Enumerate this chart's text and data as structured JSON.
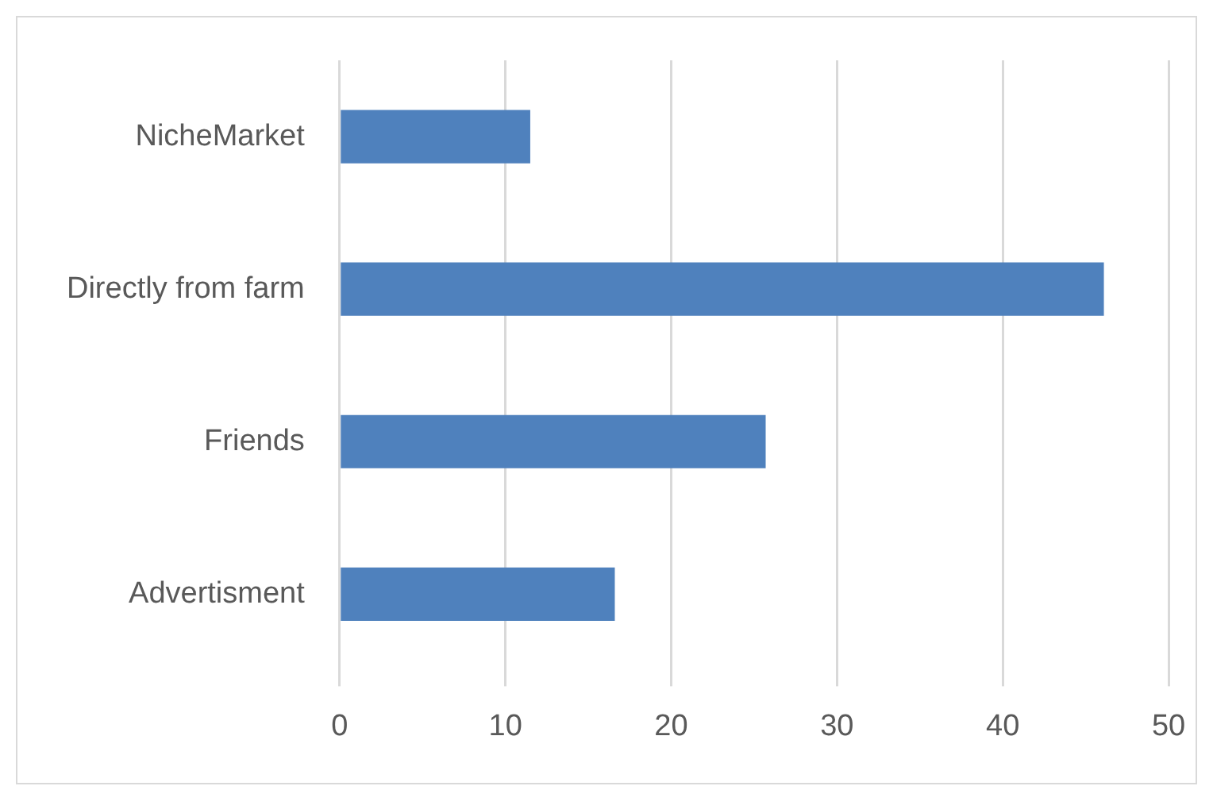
{
  "chart_data": {
    "type": "bar",
    "orientation": "horizontal",
    "categories": [
      "NicheMarket",
      "Directly from farm",
      "Friends",
      "Advertisment"
    ],
    "values": [
      11.5,
      46.1,
      25.7,
      16.6
    ],
    "color": "#4f81bd",
    "xlim": [
      0,
      50
    ],
    "xticks": [
      0,
      10,
      20,
      30,
      40,
      50
    ],
    "grid": "x",
    "legend": false
  }
}
